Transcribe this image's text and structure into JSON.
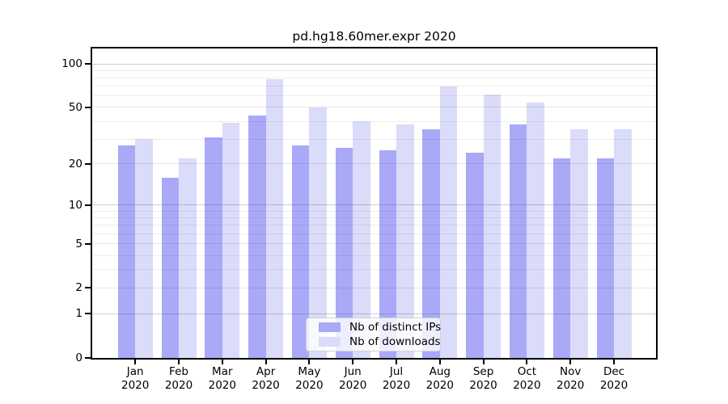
{
  "chart_data": {
    "type": "bar",
    "title": "pd.hg18.60mer.expr 2020",
    "categories": [
      "Jan",
      "Feb",
      "Mar",
      "Apr",
      "May",
      "Jun",
      "Jul",
      "Aug",
      "Sep",
      "Oct",
      "Nov",
      "Dec"
    ],
    "category_year": "2020",
    "series": [
      {
        "name": "Nb of distinct IPs",
        "color": "#a9a9f8",
        "values": [
          27,
          16,
          31,
          44,
          27,
          26,
          25,
          35,
          24,
          38,
          22,
          22
        ]
      },
      {
        "name": "Nb of downloads",
        "color": "#dbdbfa",
        "values": [
          30,
          22,
          39,
          78,
          50,
          40,
          38,
          70,
          61,
          54,
          35,
          35
        ]
      }
    ],
    "xlabel": "",
    "ylabel": "",
    "y_axis": {
      "scale": "symlog",
      "ticks": [
        0,
        1,
        2,
        5,
        10,
        20,
        50,
        100
      ],
      "decade_gridlines": [
        1,
        10,
        100
      ],
      "minor_gridlines": [
        3,
        4,
        6,
        7,
        8,
        9,
        30,
        40,
        60,
        70,
        80,
        90
      ],
      "ylim": [
        0,
        128
      ]
    },
    "legend": {
      "position": "lower center",
      "items": [
        "Nb of distinct IPs",
        "Nb of downloads"
      ]
    },
    "grid": "horizontal"
  }
}
